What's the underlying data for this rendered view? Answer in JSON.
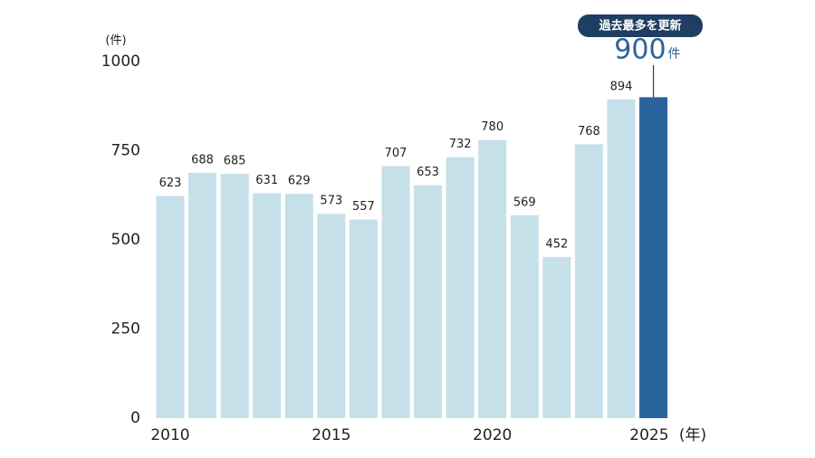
{
  "chart_data": {
    "type": "bar",
    "y_label": "(件)",
    "x_label": "(年)",
    "categories": [
      "2010",
      null,
      null,
      null,
      null,
      "2015",
      null,
      null,
      null,
      null,
      "2020",
      null,
      null,
      null,
      null,
      "2025"
    ],
    "values": [
      623,
      688,
      685,
      631,
      629,
      573,
      557,
      707,
      653,
      732,
      780,
      569,
      452,
      768,
      894,
      900
    ],
    "colors": [
      "#c6e0ea",
      "#c6e0ea",
      "#c6e0ea",
      "#c6e0ea",
      "#c6e0ea",
      "#c6e0ea",
      "#c6e0ea",
      "#c6e0ea",
      "#c6e0ea",
      "#c6e0ea",
      "#c6e0ea",
      "#c6e0ea",
      "#c6e0ea",
      "#c6e0ea",
      "#c6e0ea",
      "#2a639b"
    ],
    "highlight": {
      "badge": "過去最多を更新",
      "unit": "件"
    },
    "ylim": [
      0,
      1000
    ],
    "yticks": [
      0,
      250,
      500,
      750,
      1000
    ],
    "grid": false
  }
}
